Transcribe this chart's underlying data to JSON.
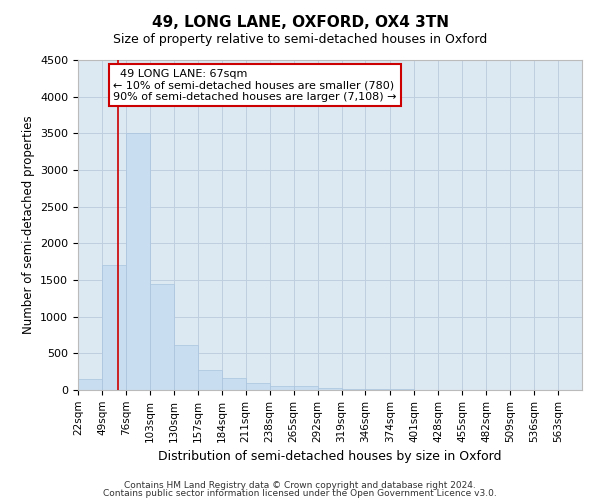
{
  "title": "49, LONG LANE, OXFORD, OX4 3TN",
  "subtitle": "Size of property relative to semi-detached houses in Oxford",
  "xlabel": "Distribution of semi-detached houses by size in Oxford",
  "ylabel": "Number of semi-detached properties",
  "footnote1": "Contains HM Land Registry data © Crown copyright and database right 2024.",
  "footnote2": "Contains public sector information licensed under the Open Government Licence v3.0.",
  "property_size": 67,
  "property_label": "49 LONG LANE: 67sqm",
  "pct_smaller": 10,
  "count_smaller": 780,
  "pct_larger": 90,
  "count_larger": 7108,
  "bin_labels": [
    "22sqm",
    "49sqm",
    "76sqm",
    "103sqm",
    "130sqm",
    "157sqm",
    "184sqm",
    "211sqm",
    "238sqm",
    "265sqm",
    "292sqm",
    "319sqm",
    "346sqm",
    "374sqm",
    "401sqm",
    "428sqm",
    "455sqm",
    "482sqm",
    "509sqm",
    "536sqm",
    "563sqm"
  ],
  "bin_edges": [
    22,
    49,
    76,
    103,
    130,
    157,
    184,
    211,
    238,
    265,
    292,
    319,
    346,
    374,
    401,
    428,
    455,
    482,
    509,
    536,
    563,
    590
  ],
  "bar_heights": [
    150,
    1700,
    3500,
    1450,
    620,
    270,
    165,
    100,
    60,
    50,
    30,
    20,
    15,
    10,
    5,
    5,
    5,
    5,
    5,
    5,
    5
  ],
  "bar_color": "#c8ddef",
  "bar_edge_color": "#aac4de",
  "grid_color": "#c0cfe0",
  "background_color": "#dce8f2",
  "red_line_color": "#cc0000",
  "box_edge_color": "#cc0000",
  "ylim": [
    0,
    4500
  ],
  "yticks": [
    0,
    500,
    1000,
    1500,
    2000,
    2500,
    3000,
    3500,
    4000,
    4500
  ],
  "fig_width": 6.0,
  "fig_height": 5.0,
  "dpi": 100
}
